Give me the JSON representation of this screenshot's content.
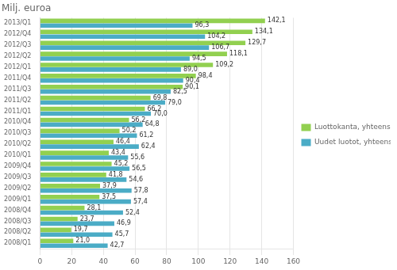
{
  "chart_data": {
    "type": "bar",
    "orientation": "horizontal",
    "title": "Milj. euroa",
    "categories": [
      "2013/Q1",
      "2012/Q4",
      "2012/Q3",
      "2012/Q2",
      "2012/Q1",
      "2011/Q4",
      "2011/Q3",
      "2011/Q2",
      "2011/Q1",
      "2010/Q4",
      "2010/Q3",
      "2010/Q2",
      "2010/Q1",
      "2009/Q4",
      "2009/Q3",
      "2009/Q2",
      "2009/Q1",
      "2008/Q4",
      "2008/Q3",
      "2008/Q2",
      "2008/Q1"
    ],
    "series": [
      {
        "name": "Luottokanta, yhteensä",
        "color": "#92d050",
        "values": [
          142.1,
          134.1,
          129.7,
          118.1,
          109.2,
          98.4,
          90.1,
          69.8,
          66.2,
          56.2,
          50.2,
          46.4,
          43.4,
          45.2,
          41.8,
          37.9,
          37.5,
          28.1,
          23.7,
          19.7,
          21.0
        ],
        "value_labels": [
          "142,1",
          "134,1",
          "129,7",
          "118,1",
          "109,2",
          "98,4",
          "90,1",
          "69,8",
          "66,2",
          "56,2",
          "50,2",
          "46,4",
          "43,4",
          "45,2",
          "41,8",
          "37,9",
          "37,5",
          "28,1",
          "23,7",
          "19,7",
          "21,0"
        ]
      },
      {
        "name": "Uudet luotot, yhteensä",
        "color": "#4bacc6",
        "values": [
          96.3,
          104.2,
          106.7,
          94.5,
          89.0,
          90.4,
          82.5,
          79.0,
          70.0,
          64.8,
          61.2,
          62.4,
          55.6,
          56.5,
          54.6,
          57.8,
          57.4,
          52.4,
          46.9,
          45.7,
          42.7
        ],
        "value_labels": [
          "96,3",
          "104,2",
          "106,7",
          "94,5",
          "89,0",
          "90,4",
          "82,5",
          "79,0",
          "70,0",
          "64,8",
          "61,2",
          "62,4",
          "55,6",
          "56,5",
          "54,6",
          "57,8",
          "57,4",
          "52,4",
          "46,9",
          "45,7",
          "42,7"
        ]
      }
    ],
    "xlim": [
      0,
      160
    ],
    "xticks": [
      0,
      20,
      40,
      60,
      80,
      100,
      120,
      140,
      160
    ],
    "grid": "x",
    "legend": "right",
    "data_labels": true
  }
}
